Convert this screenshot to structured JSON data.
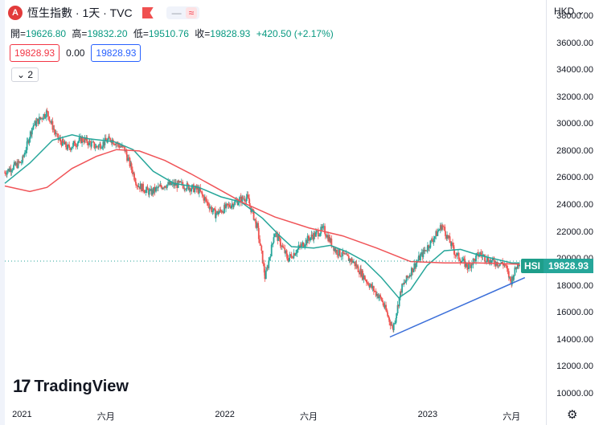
{
  "header": {
    "logo_glyph": "A",
    "title": "恆生指數 · 1天 · TVC",
    "minus": "—",
    "wave": "≈"
  },
  "ohlc": [
    {
      "label": "開=",
      "value": "19626.80"
    },
    {
      "label": "高=",
      "value": "19832.20"
    },
    {
      "label": "低=",
      "value": "19510.76"
    },
    {
      "label": "收=",
      "value": "19828.93"
    }
  ],
  "change": "+420.50 (+2.17%)",
  "boxes": {
    "red": "19828.93",
    "middle": "0.00",
    "blue": "19828.93"
  },
  "collapse": "⌄ 2",
  "currency": "HKD ⌄",
  "price_tag": {
    "symbol": "HSI",
    "value": "19828.93"
  },
  "watermark": {
    "logo": "17",
    "text": "TradingView"
  },
  "settings_glyph": "⚙",
  "colors": {
    "up": "#26a69a",
    "down": "#ef5350",
    "ma_short": "#26a69a",
    "ma_long": "#f05458",
    "trend": "#3b6fd9"
  },
  "chart_data": {
    "type": "line",
    "title": "",
    "ylabel": "",
    "xlabel": "",
    "ylim": [
      9400,
      39200
    ],
    "y_ticks": [
      "38000.00",
      "36000.00",
      "34000.00",
      "32000.00",
      "30000.00",
      "28000.00",
      "26000.00",
      "24000.00",
      "22000.00",
      "20000.00",
      "18000.00",
      "16000.00",
      "14000.00",
      "12000.00",
      "10000.00"
    ],
    "x_ticks": [
      "2021",
      "六月",
      "2022",
      "六月",
      "2023",
      "六月"
    ],
    "x_tick_dates": [
      "2021-01-01",
      "2021-06-01",
      "2022-01-01",
      "2022-06-01",
      "2023-01-01",
      "2023-06-01"
    ],
    "date_range": [
      "2020-12-01",
      "2023-06-18"
    ],
    "last_price": 19828.93,
    "series": [
      {
        "kind": "close",
        "points": [
          [
            "2020-12-01",
            26400
          ],
          [
            "2020-12-15",
            26800
          ],
          [
            "2021-01-01",
            27200
          ],
          [
            "2021-01-20",
            29800
          ],
          [
            "2021-02-15",
            30900
          ],
          [
            "2021-03-05",
            29000
          ],
          [
            "2021-03-25",
            28200
          ],
          [
            "2021-04-20",
            28900
          ],
          [
            "2021-05-15",
            28300
          ],
          [
            "2021-06-10",
            28900
          ],
          [
            "2021-07-05",
            28100
          ],
          [
            "2021-07-28",
            25500
          ],
          [
            "2021-08-20",
            24900
          ],
          [
            "2021-09-15",
            25500
          ],
          [
            "2021-10-15",
            25500
          ],
          [
            "2021-11-15",
            25100
          ],
          [
            "2021-12-15",
            23300
          ],
          [
            "2022-01-15",
            24100
          ],
          [
            "2022-02-10",
            24600
          ],
          [
            "2022-03-01",
            22300
          ],
          [
            "2022-03-15",
            18600
          ],
          [
            "2022-04-01",
            22000
          ],
          [
            "2022-04-25",
            20000
          ],
          [
            "2022-06-01",
            21500
          ],
          [
            "2022-06-28",
            22200
          ],
          [
            "2022-07-20",
            20600
          ],
          [
            "2022-08-20",
            19800
          ],
          [
            "2022-09-20",
            18000
          ],
          [
            "2022-10-10",
            17000
          ],
          [
            "2022-10-31",
            14800
          ],
          [
            "2022-11-15",
            17800
          ],
          [
            "2022-12-10",
            19600
          ],
          [
            "2023-01-10",
            21400
          ],
          [
            "2023-01-27",
            22500
          ],
          [
            "2023-02-20",
            20400
          ],
          [
            "2023-03-15",
            19400
          ],
          [
            "2023-04-05",
            20400
          ],
          [
            "2023-04-25",
            19800
          ],
          [
            "2023-05-20",
            19600
          ],
          [
            "2023-05-31",
            18250
          ],
          [
            "2023-06-10",
            19400
          ],
          [
            "2023-06-16",
            19828.93
          ]
        ]
      },
      {
        "kind": "ma_short",
        "points": [
          [
            "2020-12-01",
            25600
          ],
          [
            "2021-01-15",
            27100
          ],
          [
            "2021-02-25",
            28800
          ],
          [
            "2021-04-01",
            29200
          ],
          [
            "2021-05-01",
            28900
          ],
          [
            "2021-06-15",
            28700
          ],
          [
            "2021-07-20",
            28100
          ],
          [
            "2021-08-25",
            26500
          ],
          [
            "2021-10-01",
            25600
          ],
          [
            "2021-11-15",
            25300
          ],
          [
            "2021-12-25",
            24600
          ],
          [
            "2022-01-31",
            24200
          ],
          [
            "2022-03-10",
            23000
          ],
          [
            "2022-04-10",
            21700
          ],
          [
            "2022-05-01",
            20900
          ],
          [
            "2022-06-10",
            20800
          ],
          [
            "2022-07-10",
            21000
          ],
          [
            "2022-08-10",
            20500
          ],
          [
            "2022-09-10",
            19800
          ],
          [
            "2022-10-10",
            18600
          ],
          [
            "2022-11-10",
            17100
          ],
          [
            "2022-12-01",
            17700
          ],
          [
            "2022-12-31",
            19500
          ],
          [
            "2023-01-31",
            20600
          ],
          [
            "2023-03-01",
            20700
          ],
          [
            "2023-04-01",
            20300
          ],
          [
            "2023-05-01",
            20000
          ],
          [
            "2023-06-01",
            19700
          ],
          [
            "2023-06-16",
            19700
          ]
        ]
      },
      {
        "kind": "ma_long",
        "points": [
          [
            "2020-12-01",
            25400
          ],
          [
            "2021-01-15",
            25000
          ],
          [
            "2021-02-15",
            25300
          ],
          [
            "2021-04-01",
            26700
          ],
          [
            "2021-05-15",
            27600
          ],
          [
            "2021-06-20",
            28100
          ],
          [
            "2021-07-31",
            28000
          ],
          [
            "2021-09-15",
            27300
          ],
          [
            "2021-11-01",
            26300
          ],
          [
            "2021-12-15",
            25300
          ],
          [
            "2022-02-01",
            24200
          ],
          [
            "2022-04-01",
            23100
          ],
          [
            "2022-06-01",
            22300
          ],
          [
            "2022-08-01",
            21700
          ],
          [
            "2022-10-01",
            20800
          ],
          [
            "2022-12-01",
            19800
          ],
          [
            "2023-01-31",
            19700
          ],
          [
            "2023-04-01",
            19700
          ],
          [
            "2023-06-16",
            19600
          ]
        ]
      },
      {
        "kind": "trendline",
        "points": [
          [
            "2022-10-25",
            14200
          ],
          [
            "2023-06-25",
            18600
          ]
        ]
      }
    ]
  }
}
